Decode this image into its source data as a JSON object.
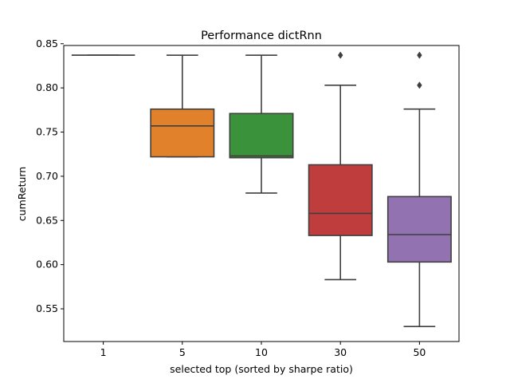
{
  "chart_data": {
    "type": "box",
    "title": "Performance dictRnn",
    "xlabel": "selected top (sorted by sharpe ratio)",
    "ylabel": "cumReturn",
    "ylim": [
      0.513,
      0.848
    ],
    "yticks": [
      0.55,
      0.6,
      0.65,
      0.7,
      0.75,
      0.8,
      0.85
    ],
    "ytick_labels": [
      "0.55",
      "0.60",
      "0.65",
      "0.70",
      "0.75",
      "0.80",
      "0.85"
    ],
    "categories": [
      "1",
      "5",
      "10",
      "30",
      "50"
    ],
    "grid": false,
    "legend": "none",
    "boxes": [
      {
        "category": "1",
        "whisker_low": 0.837,
        "q1": 0.837,
        "median": 0.837,
        "q3": 0.837,
        "whisker_high": 0.837,
        "outliers": [],
        "color": "#3a75af"
      },
      {
        "category": "5",
        "whisker_low": 0.722,
        "q1": 0.722,
        "median": 0.757,
        "q3": 0.776,
        "whisker_high": 0.837,
        "outliers": [],
        "color": "#e1812c"
      },
      {
        "category": "10",
        "whisker_low": 0.681,
        "q1": 0.721,
        "median": 0.723,
        "q3": 0.771,
        "whisker_high": 0.837,
        "outliers": [],
        "color": "#3a923a"
      },
      {
        "category": "30",
        "whisker_low": 0.583,
        "q1": 0.633,
        "median": 0.658,
        "q3": 0.713,
        "whisker_high": 0.803,
        "outliers": [
          0.837
        ],
        "color": "#c03d3e"
      },
      {
        "category": "50",
        "whisker_low": 0.53,
        "q1": 0.603,
        "median": 0.634,
        "q3": 0.677,
        "whisker_high": 0.776,
        "outliers": [
          0.803,
          0.837
        ],
        "color": "#9372b2"
      }
    ],
    "line_color": "#3f3f3f"
  }
}
